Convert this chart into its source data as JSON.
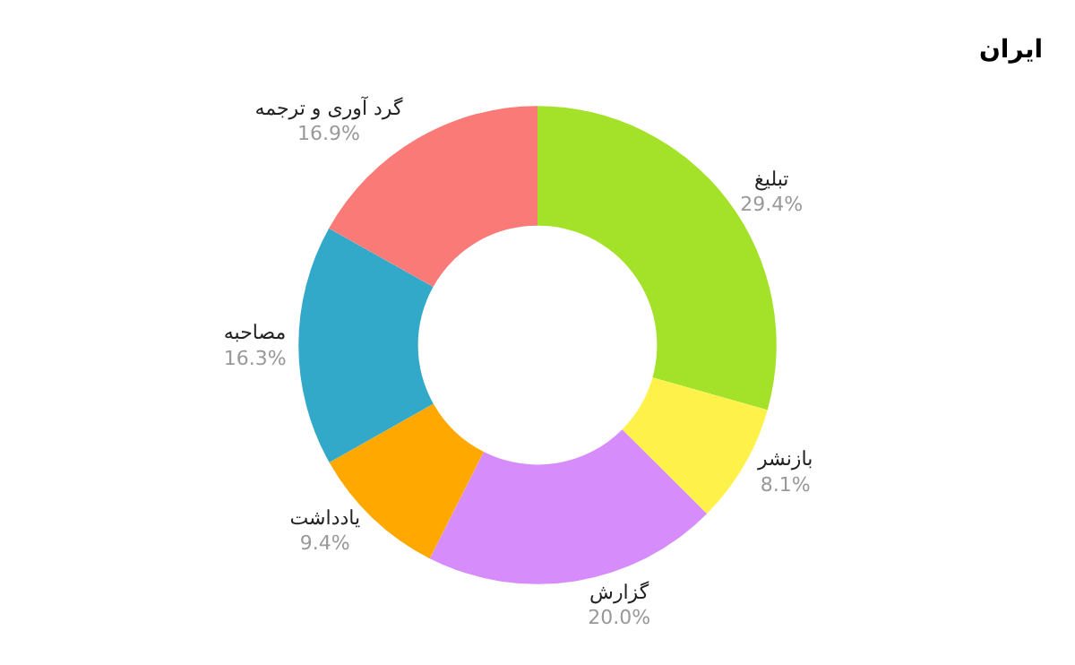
{
  "chart_data": {
    "type": "donut",
    "title": "ایران",
    "categories": [
      "تبلیغ",
      "بازنشر",
      "گزارش",
      "یادداشت",
      "مصاحبه",
      "گرد آوری و ترجمه"
    ],
    "values": [
      29.4,
      8.1,
      20.0,
      9.4,
      16.3,
      16.9
    ],
    "colors": [
      "#a4e22a",
      "#fef24a",
      "#d78cfb",
      "#ffa800",
      "#33a9c9",
      "#f97a76"
    ],
    "value_labels": [
      "29.4%",
      "8.1%",
      "20.0%",
      "9.4%",
      "16.3%",
      "16.9%"
    ]
  }
}
